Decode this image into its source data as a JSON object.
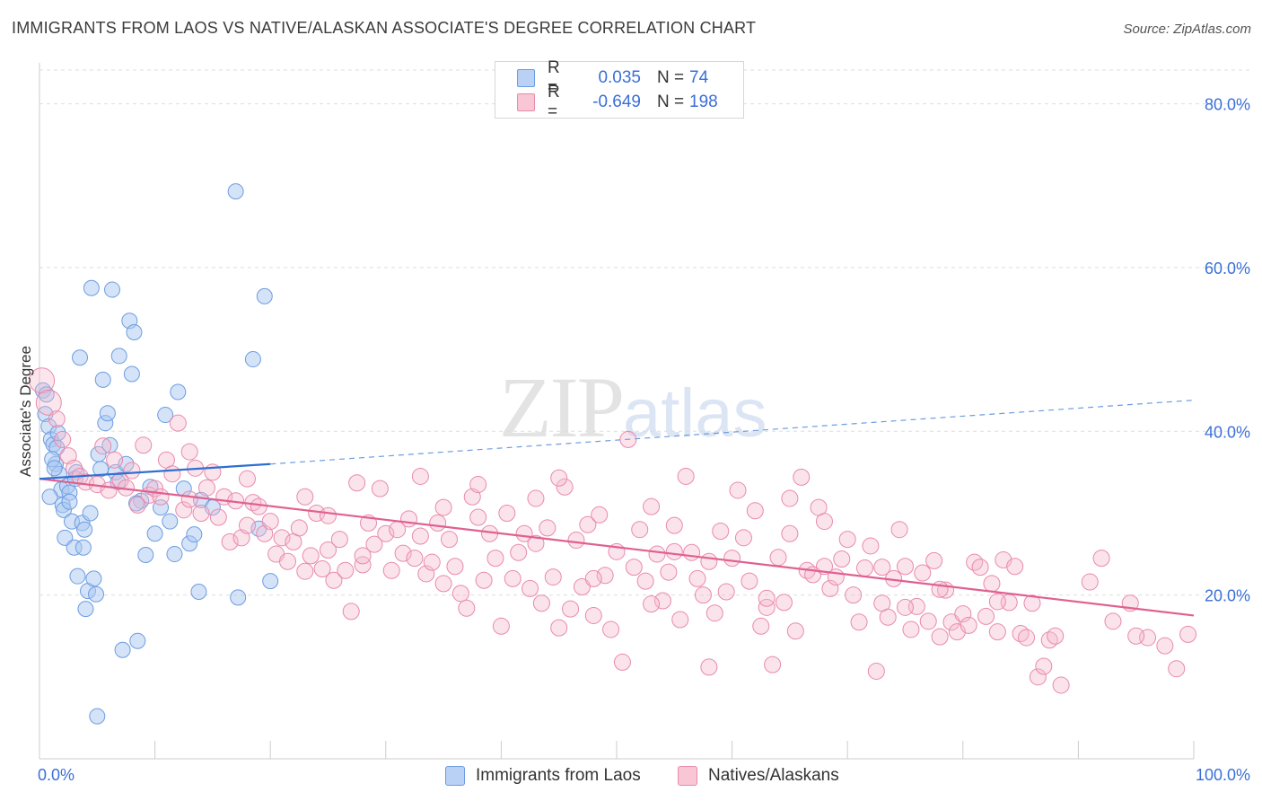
{
  "title": "IMMIGRANTS FROM LAOS VS NATIVE/ALASKAN ASSOCIATE'S DEGREE CORRELATION CHART",
  "source": "Source: ZipAtlas.com",
  "watermark": {
    "zip": "ZIP",
    "atlas": "atlas"
  },
  "legend": {
    "series1": {
      "r_label": "R =",
      "r_value": "0.035",
      "n_label": "N =",
      "n_value": "74"
    },
    "series2": {
      "r_label": "R =",
      "r_value": "-0.649",
      "n_label": "N =",
      "n_value": "198"
    }
  },
  "colors": {
    "blue_fill": "#a9c8f2",
    "blue_stroke": "#6d9de0",
    "blue_line": "#2f6fd0",
    "pink_fill": "#f6b8cc",
    "pink_stroke": "#e98aab",
    "pink_line": "#e06090",
    "grid": "#dddddd",
    "axis_label": "#3a6fd8"
  },
  "chart_data": {
    "type": "scatter",
    "title": "IMMIGRANTS FROM LAOS VS NATIVE/ALASKAN ASSOCIATE'S DEGREE CORRELATION CHART",
    "xlabel": "",
    "ylabel": "Associate's Degree",
    "xlim": [
      0,
      100
    ],
    "ylim": [
      0,
      85
    ],
    "x_tick_labels": [
      "0.0%",
      "100.0%"
    ],
    "y_ticks": [
      20,
      40,
      60,
      80
    ],
    "y_tick_labels": [
      "20.0%",
      "40.0%",
      "60.0%",
      "80.0%"
    ],
    "series": [
      {
        "name": "Immigrants from Laos",
        "r": 0.035,
        "n": 74,
        "trend_solid": {
          "x": [
            0,
            20
          ],
          "y": [
            34.2,
            36.0
          ]
        },
        "trend_dashed": {
          "x": [
            20,
            100
          ],
          "y": [
            36.0,
            43.8
          ]
        },
        "points": [
          [
            0.3,
            45.0
          ],
          [
            0.5,
            42.1
          ],
          [
            0.8,
            40.6
          ],
          [
            1.0,
            39.0
          ],
          [
            1.2,
            38.4
          ],
          [
            1.4,
            36.0
          ],
          [
            1.5,
            38.0
          ],
          [
            1.7,
            34.8
          ],
          [
            1.9,
            32.9
          ],
          [
            2.0,
            31.0
          ],
          [
            2.1,
            30.4
          ],
          [
            2.2,
            27.0
          ],
          [
            2.4,
            33.3
          ],
          [
            2.6,
            32.5
          ],
          [
            2.8,
            29.0
          ],
          [
            3.0,
            25.8
          ],
          [
            3.2,
            35.0
          ],
          [
            3.3,
            22.3
          ],
          [
            3.5,
            49.0
          ],
          [
            3.7,
            28.8
          ],
          [
            3.8,
            25.8
          ],
          [
            4.0,
            18.3
          ],
          [
            4.2,
            20.5
          ],
          [
            4.4,
            30.0
          ],
          [
            4.5,
            57.5
          ],
          [
            4.7,
            22.0
          ],
          [
            4.9,
            20.1
          ],
          [
            5.1,
            37.2
          ],
          [
            5.3,
            35.4
          ],
          [
            5.5,
            46.3
          ],
          [
            5.7,
            41.0
          ],
          [
            5.9,
            42.2
          ],
          [
            6.1,
            38.3
          ],
          [
            6.3,
            57.3
          ],
          [
            6.6,
            35.0
          ],
          [
            6.9,
            49.2
          ],
          [
            7.2,
            13.3
          ],
          [
            7.5,
            36.0
          ],
          [
            7.8,
            53.5
          ],
          [
            8.0,
            47.0
          ],
          [
            8.2,
            52.1
          ],
          [
            8.5,
            14.4
          ],
          [
            8.8,
            31.5
          ],
          [
            9.2,
            24.9
          ],
          [
            9.6,
            33.2
          ],
          [
            10.0,
            27.5
          ],
          [
            10.5,
            30.7
          ],
          [
            10.9,
            42.0
          ],
          [
            11.3,
            29.0
          ],
          [
            11.7,
            25.0
          ],
          [
            12.0,
            44.8
          ],
          [
            12.5,
            33.0
          ],
          [
            13.0,
            26.3
          ],
          [
            13.4,
            27.4
          ],
          [
            13.8,
            20.4
          ],
          [
            14.0,
            31.6
          ],
          [
            15.0,
            30.7
          ],
          [
            17.2,
            19.7
          ],
          [
            18.5,
            48.8
          ],
          [
            19.0,
            28.1
          ],
          [
            20.0,
            21.7
          ],
          [
            17.0,
            69.3
          ],
          [
            19.5,
            56.5
          ],
          [
            0.6,
            44.5
          ],
          [
            1.1,
            36.6
          ],
          [
            2.6,
            31.4
          ],
          [
            3.9,
            28.0
          ],
          [
            0.9,
            32.0
          ],
          [
            5.0,
            5.2
          ],
          [
            1.6,
            39.8
          ],
          [
            3.1,
            34.2
          ],
          [
            6.8,
            33.8
          ],
          [
            8.4,
            31.2
          ],
          [
            1.3,
            35.5
          ]
        ]
      },
      {
        "name": "Natives/Alaskans",
        "r": -0.649,
        "n": 198,
        "trend": {
          "x": [
            0,
            100
          ],
          "y": [
            34.2,
            17.5
          ]
        },
        "points": [
          [
            0.2,
            46.2
          ],
          [
            0.8,
            43.5
          ],
          [
            1.5,
            41.5
          ],
          [
            2.0,
            39.0
          ],
          [
            2.5,
            37.0
          ],
          [
            3.0,
            35.5
          ],
          [
            3.5,
            34.5
          ],
          [
            4.0,
            33.8
          ],
          [
            5.0,
            33.5
          ],
          [
            5.5,
            38.2
          ],
          [
            6.0,
            32.8
          ],
          [
            6.5,
            36.5
          ],
          [
            7.0,
            34.0
          ],
          [
            7.5,
            33.1
          ],
          [
            8.0,
            35.2
          ],
          [
            8.5,
            31.0
          ],
          [
            9.0,
            38.3
          ],
          [
            9.5,
            32.2
          ],
          [
            10.0,
            33.0
          ],
          [
            10.5,
            32.0
          ],
          [
            11.0,
            36.5
          ],
          [
            11.5,
            34.8
          ],
          [
            12.0,
            41.0
          ],
          [
            12.5,
            30.4
          ],
          [
            13.0,
            31.7
          ],
          [
            13.5,
            35.5
          ],
          [
            14.0,
            30.0
          ],
          [
            14.5,
            33.1
          ],
          [
            15.0,
            35.0
          ],
          [
            15.5,
            29.5
          ],
          [
            16.0,
            32.0
          ],
          [
            16.5,
            26.5
          ],
          [
            17.0,
            31.5
          ],
          [
            17.5,
            27.0
          ],
          [
            18.0,
            28.5
          ],
          [
            18.5,
            31.3
          ],
          [
            19.0,
            30.8
          ],
          [
            19.5,
            27.5
          ],
          [
            20.0,
            29.0
          ],
          [
            20.5,
            25.0
          ],
          [
            21.0,
            27.0
          ],
          [
            21.5,
            24.1
          ],
          [
            22.0,
            26.5
          ],
          [
            22.5,
            28.2
          ],
          [
            23.0,
            32.0
          ],
          [
            23.5,
            24.8
          ],
          [
            24.0,
            30.0
          ],
          [
            24.5,
            23.2
          ],
          [
            25.0,
            25.5
          ],
          [
            25.5,
            21.8
          ],
          [
            26.0,
            26.8
          ],
          [
            26.5,
            23.0
          ],
          [
            27.0,
            18.0
          ],
          [
            27.5,
            33.7
          ],
          [
            28.0,
            23.7
          ],
          [
            28.5,
            28.8
          ],
          [
            29.0,
            26.2
          ],
          [
            29.5,
            33.0
          ],
          [
            30.0,
            27.5
          ],
          [
            30.5,
            23.0
          ],
          [
            31.0,
            28.0
          ],
          [
            31.5,
            25.1
          ],
          [
            32.0,
            29.3
          ],
          [
            32.5,
            24.5
          ],
          [
            33.0,
            34.5
          ],
          [
            33.5,
            22.6
          ],
          [
            34.0,
            24.0
          ],
          [
            34.5,
            28.8
          ],
          [
            35.0,
            21.4
          ],
          [
            35.5,
            26.8
          ],
          [
            36.0,
            23.5
          ],
          [
            36.5,
            20.2
          ],
          [
            37.0,
            18.4
          ],
          [
            37.5,
            32.0
          ],
          [
            38.0,
            33.5
          ],
          [
            38.5,
            21.8
          ],
          [
            39.0,
            27.5
          ],
          [
            39.5,
            24.5
          ],
          [
            40.0,
            16.2
          ],
          [
            40.5,
            30.0
          ],
          [
            41.0,
            22.0
          ],
          [
            41.5,
            25.2
          ],
          [
            42.0,
            27.5
          ],
          [
            42.5,
            20.8
          ],
          [
            43.0,
            31.8
          ],
          [
            43.5,
            19.0
          ],
          [
            44.0,
            28.2
          ],
          [
            44.5,
            22.2
          ],
          [
            45.0,
            16.0
          ],
          [
            45.5,
            33.2
          ],
          [
            46.0,
            18.3
          ],
          [
            46.5,
            26.7
          ],
          [
            47.0,
            21.0
          ],
          [
            47.5,
            28.6
          ],
          [
            48.0,
            17.5
          ],
          [
            48.5,
            29.8
          ],
          [
            49.0,
            22.4
          ],
          [
            49.5,
            15.8
          ],
          [
            50.0,
            25.3
          ],
          [
            50.5,
            11.8
          ],
          [
            51.0,
            39.0
          ],
          [
            51.5,
            23.4
          ],
          [
            52.0,
            28.0
          ],
          [
            52.5,
            21.7
          ],
          [
            53.0,
            30.8
          ],
          [
            53.5,
            25.0
          ],
          [
            54.0,
            19.3
          ],
          [
            54.5,
            22.8
          ],
          [
            55.0,
            28.5
          ],
          [
            55.5,
            17.0
          ],
          [
            56.0,
            34.5
          ],
          [
            56.5,
            25.2
          ],
          [
            57.0,
            22.0
          ],
          [
            57.5,
            20.0
          ],
          [
            58.0,
            11.2
          ],
          [
            58.5,
            17.8
          ],
          [
            59.0,
            27.8
          ],
          [
            59.5,
            20.4
          ],
          [
            60.0,
            24.5
          ],
          [
            60.5,
            32.8
          ],
          [
            61.0,
            27.0
          ],
          [
            61.5,
            21.7
          ],
          [
            62.0,
            30.3
          ],
          [
            62.5,
            16.2
          ],
          [
            63.0,
            18.5
          ],
          [
            63.5,
            11.5
          ],
          [
            64.0,
            24.6
          ],
          [
            64.5,
            19.1
          ],
          [
            65.0,
            27.5
          ],
          [
            65.5,
            15.6
          ],
          [
            66.0,
            34.4
          ],
          [
            66.5,
            23.0
          ],
          [
            67.0,
            22.5
          ],
          [
            67.5,
            30.7
          ],
          [
            68.0,
            29.0
          ],
          [
            68.5,
            20.8
          ],
          [
            69.0,
            22.2
          ],
          [
            69.5,
            24.4
          ],
          [
            70.0,
            26.8
          ],
          [
            70.5,
            20.0
          ],
          [
            71.0,
            16.7
          ],
          [
            71.5,
            23.3
          ],
          [
            72.0,
            26.0
          ],
          [
            72.5,
            10.7
          ],
          [
            73.0,
            19.0
          ],
          [
            73.5,
            17.3
          ],
          [
            74.0,
            22.0
          ],
          [
            74.5,
            28.0
          ],
          [
            75.0,
            23.5
          ],
          [
            75.5,
            15.8
          ],
          [
            76.0,
            18.6
          ],
          [
            76.5,
            22.7
          ],
          [
            77.0,
            16.8
          ],
          [
            77.5,
            24.2
          ],
          [
            78.0,
            14.9
          ],
          [
            78.5,
            20.6
          ],
          [
            79.0,
            16.7
          ],
          [
            79.5,
            15.5
          ],
          [
            80.0,
            17.7
          ],
          [
            80.5,
            16.3
          ],
          [
            81.0,
            24.0
          ],
          [
            81.5,
            23.4
          ],
          [
            82.0,
            17.4
          ],
          [
            82.5,
            21.4
          ],
          [
            83.0,
            15.5
          ],
          [
            83.5,
            24.3
          ],
          [
            84.0,
            19.1
          ],
          [
            84.5,
            23.5
          ],
          [
            85.0,
            15.3
          ],
          [
            85.5,
            14.8
          ],
          [
            86.0,
            19.0
          ],
          [
            86.5,
            10.0
          ],
          [
            87.0,
            11.3
          ],
          [
            87.5,
            14.5
          ],
          [
            88.0,
            15.0
          ],
          [
            88.5,
            9.0
          ],
          [
            25.0,
            29.7
          ],
          [
            35.0,
            30.7
          ],
          [
            45.0,
            34.3
          ],
          [
            55.0,
            25.3
          ],
          [
            65.0,
            31.8
          ],
          [
            75.0,
            18.5
          ],
          [
            18.0,
            34.2
          ],
          [
            28.0,
            24.8
          ],
          [
            38.0,
            29.5
          ],
          [
            48.0,
            22.0
          ],
          [
            58.0,
            24.1
          ],
          [
            68.0,
            23.5
          ],
          [
            78.0,
            20.7
          ],
          [
            13.0,
            37.5
          ],
          [
            23.0,
            22.9
          ],
          [
            33.0,
            27.2
          ],
          [
            43.0,
            26.3
          ],
          [
            53.0,
            18.9
          ],
          [
            63.0,
            19.6
          ],
          [
            73.0,
            23.4
          ],
          [
            83.0,
            19.2
          ],
          [
            96.0,
            14.8
          ],
          [
            97.5,
            13.8
          ],
          [
            99.5,
            15.2
          ],
          [
            93.0,
            16.8
          ],
          [
            95.0,
            15.0
          ],
          [
            91.0,
            21.6
          ],
          [
            92.0,
            24.5
          ],
          [
            94.5,
            19.0
          ],
          [
            98.5,
            11.0
          ]
        ]
      }
    ]
  },
  "bottom_legend": {
    "series1": "Immigrants from Laos",
    "series2": "Natives/Alaskans"
  }
}
